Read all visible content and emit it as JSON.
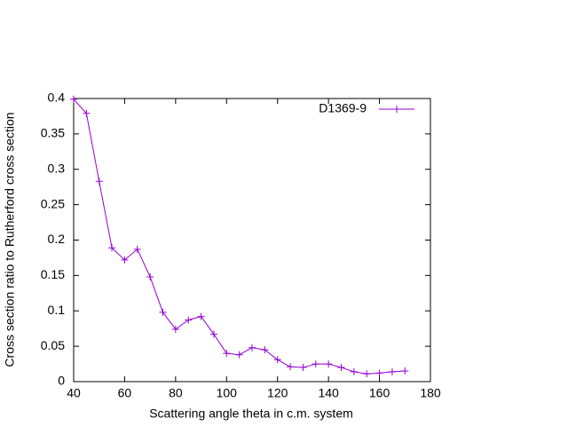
{
  "chart_data": {
    "type": "line",
    "xlabel": "Scattering angle theta in c.m. system",
    "ylabel": "Cross section ratio to Rutherford cross section",
    "x": [
      40,
      45,
      50,
      55,
      60,
      65,
      70,
      75,
      80,
      85,
      90,
      95,
      100,
      105,
      110,
      115,
      120,
      125,
      130,
      135,
      140,
      145,
      150,
      155,
      160,
      165,
      170
    ],
    "series": [
      {
        "name": "D1369-9",
        "color": "#9400d3",
        "values": [
          0.399,
          0.379,
          0.283,
          0.189,
          0.172,
          0.187,
          0.148,
          0.098,
          0.074,
          0.087,
          0.092,
          0.067,
          0.04,
          0.038,
          0.048,
          0.045,
          0.031,
          0.021,
          0.02,
          0.025,
          0.025,
          0.02,
          0.014,
          0.011,
          0.012,
          0.014,
          0.015
        ]
      }
    ],
    "xlim": [
      40,
      180
    ],
    "xticks": [
      40,
      60,
      80,
      100,
      120,
      140,
      160,
      180
    ],
    "ylim": [
      0,
      0.4
    ],
    "yticks": [
      0,
      0.05,
      0.1,
      0.15,
      0.2,
      0.25,
      0.3,
      0.35,
      0.4
    ],
    "legend": "top-right",
    "grid": false
  }
}
